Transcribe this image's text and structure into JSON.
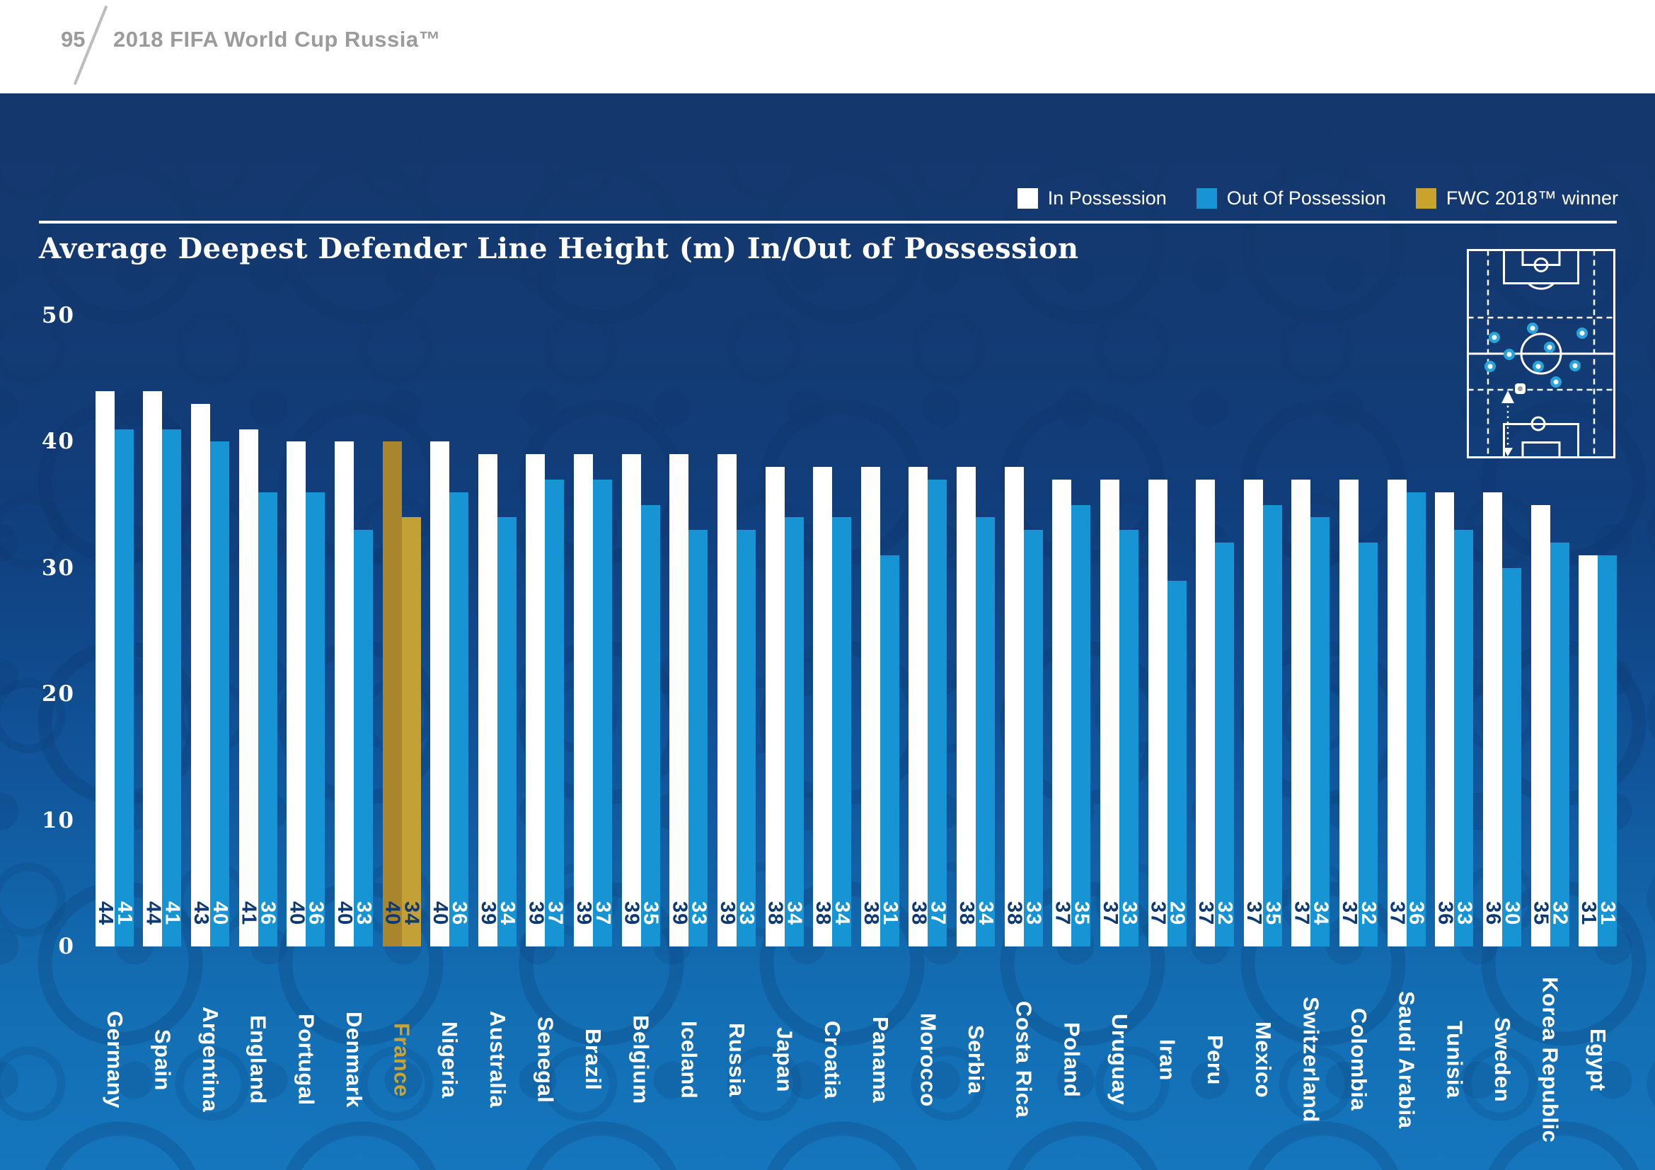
{
  "header": {
    "page_number": "95",
    "title": "2018 FIFA World Cup Russia™"
  },
  "legend": {
    "items": [
      {
        "label": "In Possession",
        "color": "#ffffff"
      },
      {
        "label": "Out Of Possession",
        "color": "#1794d3"
      },
      {
        "label": "FWC 2018™ winner",
        "color": "#c8a42d"
      }
    ]
  },
  "icons": {
    "pitch_diagram": "football-pitch-top-view-with-deepest-defender-line-arrow"
  },
  "colors": {
    "bar_in": "#ffffff",
    "bar_out": "#1794d3",
    "gold_in": "#a9852d",
    "gold_out": "#c4a137",
    "value_navy": "#0d3a74",
    "france_gold": "#c9a335",
    "background_top": "#14386e",
    "background_bottom": "#1576bd",
    "header_gray": "#9b9b9b"
  },
  "chart_data": {
    "type": "bar",
    "title": "Average Deepest Defender Line Height (m) In/Out of Possession",
    "xlabel": "",
    "ylabel": "",
    "unit": "m",
    "ylim": [
      0,
      50
    ],
    "yticks": [
      0,
      10,
      20,
      30,
      40,
      50
    ],
    "grid": false,
    "legend_position": "top-right",
    "categories": [
      "Germany",
      "Spain",
      "Argentina",
      "England",
      "Portugal",
      "Denmark",
      "France",
      "Nigeria",
      "Australia",
      "Senegal",
      "Brazil",
      "Belgium",
      "Iceland",
      "Russia",
      "Japan",
      "Croatia",
      "Panama",
      "Morocco",
      "Serbia",
      "Costa Rica",
      "Poland",
      "Uruguay",
      "Iran",
      "Peru",
      "Mexico",
      "Switzerland",
      "Colombia",
      "Saudi Arabia",
      "Tunisia",
      "Sweden",
      "Korea Republic",
      "Egypt"
    ],
    "series": [
      {
        "name": "In Possession",
        "values": [
          44,
          44,
          43,
          41,
          40,
          40,
          40,
          40,
          39,
          39,
          39,
          39,
          39,
          39,
          38,
          38,
          38,
          38,
          38,
          38,
          37,
          37,
          37,
          37,
          37,
          37,
          37,
          37,
          36,
          36,
          35,
          31
        ]
      },
      {
        "name": "Out Of Possession",
        "values": [
          41,
          41,
          40,
          36,
          36,
          33,
          34,
          36,
          34,
          37,
          37,
          35,
          33,
          33,
          34,
          34,
          31,
          37,
          34,
          33,
          35,
          33,
          29,
          32,
          35,
          34,
          32,
          36,
          33,
          30,
          32,
          31
        ]
      }
    ],
    "highlight": {
      "category": "France",
      "label": "FWC 2018™ winner"
    }
  }
}
